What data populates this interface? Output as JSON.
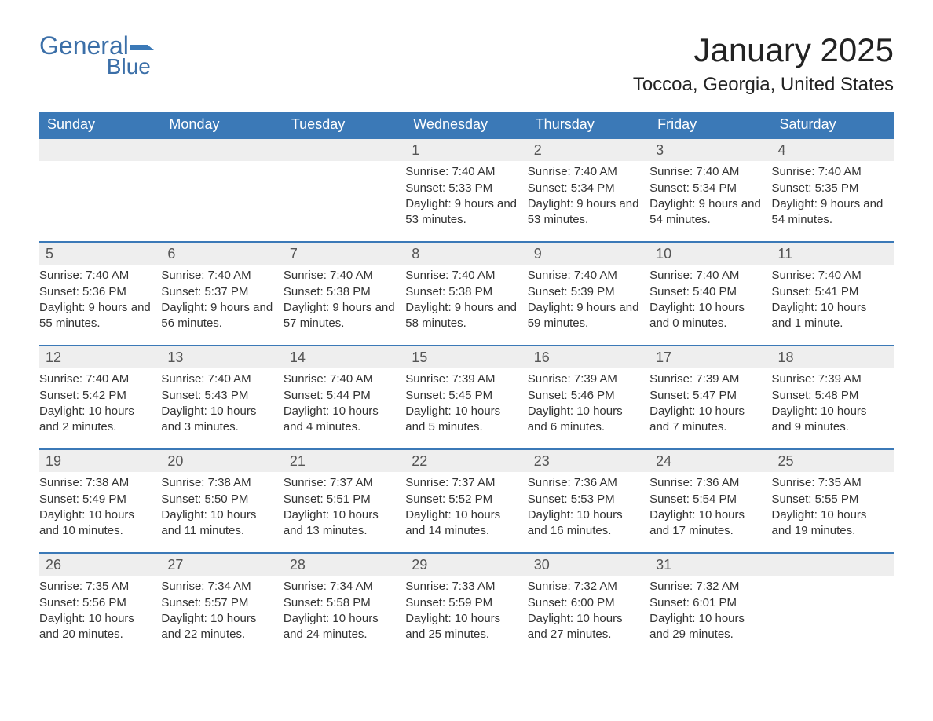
{
  "logo": {
    "text1": "General",
    "text2": "Blue",
    "flag_color": "#3b79b7"
  },
  "title": "January 2025",
  "location": "Toccoa, Georgia, United States",
  "colors": {
    "header_bg": "#3b79b7",
    "header_text": "#ffffff",
    "daynum_bg": "#eeeeee",
    "daynum_text": "#555555",
    "body_text": "#333333",
    "page_bg": "#ffffff",
    "row_border": "#3b79b7"
  },
  "fonts": {
    "title_pt": 42,
    "location_pt": 24,
    "dow_pt": 18,
    "daynum_pt": 18,
    "body_pt": 15
  },
  "days_of_week": [
    "Sunday",
    "Monday",
    "Tuesday",
    "Wednesday",
    "Thursday",
    "Friday",
    "Saturday"
  ],
  "weeks": [
    [
      {
        "n": "",
        "sr": "",
        "ss": "",
        "dl": ""
      },
      {
        "n": "",
        "sr": "",
        "ss": "",
        "dl": ""
      },
      {
        "n": "",
        "sr": "",
        "ss": "",
        "dl": ""
      },
      {
        "n": "1",
        "sr": "Sunrise: 7:40 AM",
        "ss": "Sunset: 5:33 PM",
        "dl": "Daylight: 9 hours and 53 minutes."
      },
      {
        "n": "2",
        "sr": "Sunrise: 7:40 AM",
        "ss": "Sunset: 5:34 PM",
        "dl": "Daylight: 9 hours and 53 minutes."
      },
      {
        "n": "3",
        "sr": "Sunrise: 7:40 AM",
        "ss": "Sunset: 5:34 PM",
        "dl": "Daylight: 9 hours and 54 minutes."
      },
      {
        "n": "4",
        "sr": "Sunrise: 7:40 AM",
        "ss": "Sunset: 5:35 PM",
        "dl": "Daylight: 9 hours and 54 minutes."
      }
    ],
    [
      {
        "n": "5",
        "sr": "Sunrise: 7:40 AM",
        "ss": "Sunset: 5:36 PM",
        "dl": "Daylight: 9 hours and 55 minutes."
      },
      {
        "n": "6",
        "sr": "Sunrise: 7:40 AM",
        "ss": "Sunset: 5:37 PM",
        "dl": "Daylight: 9 hours and 56 minutes."
      },
      {
        "n": "7",
        "sr": "Sunrise: 7:40 AM",
        "ss": "Sunset: 5:38 PM",
        "dl": "Daylight: 9 hours and 57 minutes."
      },
      {
        "n": "8",
        "sr": "Sunrise: 7:40 AM",
        "ss": "Sunset: 5:38 PM",
        "dl": "Daylight: 9 hours and 58 minutes."
      },
      {
        "n": "9",
        "sr": "Sunrise: 7:40 AM",
        "ss": "Sunset: 5:39 PM",
        "dl": "Daylight: 9 hours and 59 minutes."
      },
      {
        "n": "10",
        "sr": "Sunrise: 7:40 AM",
        "ss": "Sunset: 5:40 PM",
        "dl": "Daylight: 10 hours and 0 minutes."
      },
      {
        "n": "11",
        "sr": "Sunrise: 7:40 AM",
        "ss": "Sunset: 5:41 PM",
        "dl": "Daylight: 10 hours and 1 minute."
      }
    ],
    [
      {
        "n": "12",
        "sr": "Sunrise: 7:40 AM",
        "ss": "Sunset: 5:42 PM",
        "dl": "Daylight: 10 hours and 2 minutes."
      },
      {
        "n": "13",
        "sr": "Sunrise: 7:40 AM",
        "ss": "Sunset: 5:43 PM",
        "dl": "Daylight: 10 hours and 3 minutes."
      },
      {
        "n": "14",
        "sr": "Sunrise: 7:40 AM",
        "ss": "Sunset: 5:44 PM",
        "dl": "Daylight: 10 hours and 4 minutes."
      },
      {
        "n": "15",
        "sr": "Sunrise: 7:39 AM",
        "ss": "Sunset: 5:45 PM",
        "dl": "Daylight: 10 hours and 5 minutes."
      },
      {
        "n": "16",
        "sr": "Sunrise: 7:39 AM",
        "ss": "Sunset: 5:46 PM",
        "dl": "Daylight: 10 hours and 6 minutes."
      },
      {
        "n": "17",
        "sr": "Sunrise: 7:39 AM",
        "ss": "Sunset: 5:47 PM",
        "dl": "Daylight: 10 hours and 7 minutes."
      },
      {
        "n": "18",
        "sr": "Sunrise: 7:39 AM",
        "ss": "Sunset: 5:48 PM",
        "dl": "Daylight: 10 hours and 9 minutes."
      }
    ],
    [
      {
        "n": "19",
        "sr": "Sunrise: 7:38 AM",
        "ss": "Sunset: 5:49 PM",
        "dl": "Daylight: 10 hours and 10 minutes."
      },
      {
        "n": "20",
        "sr": "Sunrise: 7:38 AM",
        "ss": "Sunset: 5:50 PM",
        "dl": "Daylight: 10 hours and 11 minutes."
      },
      {
        "n": "21",
        "sr": "Sunrise: 7:37 AM",
        "ss": "Sunset: 5:51 PM",
        "dl": "Daylight: 10 hours and 13 minutes."
      },
      {
        "n": "22",
        "sr": "Sunrise: 7:37 AM",
        "ss": "Sunset: 5:52 PM",
        "dl": "Daylight: 10 hours and 14 minutes."
      },
      {
        "n": "23",
        "sr": "Sunrise: 7:36 AM",
        "ss": "Sunset: 5:53 PM",
        "dl": "Daylight: 10 hours and 16 minutes."
      },
      {
        "n": "24",
        "sr": "Sunrise: 7:36 AM",
        "ss": "Sunset: 5:54 PM",
        "dl": "Daylight: 10 hours and 17 minutes."
      },
      {
        "n": "25",
        "sr": "Sunrise: 7:35 AM",
        "ss": "Sunset: 5:55 PM",
        "dl": "Daylight: 10 hours and 19 minutes."
      }
    ],
    [
      {
        "n": "26",
        "sr": "Sunrise: 7:35 AM",
        "ss": "Sunset: 5:56 PM",
        "dl": "Daylight: 10 hours and 20 minutes."
      },
      {
        "n": "27",
        "sr": "Sunrise: 7:34 AM",
        "ss": "Sunset: 5:57 PM",
        "dl": "Daylight: 10 hours and 22 minutes."
      },
      {
        "n": "28",
        "sr": "Sunrise: 7:34 AM",
        "ss": "Sunset: 5:58 PM",
        "dl": "Daylight: 10 hours and 24 minutes."
      },
      {
        "n": "29",
        "sr": "Sunrise: 7:33 AM",
        "ss": "Sunset: 5:59 PM",
        "dl": "Daylight: 10 hours and 25 minutes."
      },
      {
        "n": "30",
        "sr": "Sunrise: 7:32 AM",
        "ss": "Sunset: 6:00 PM",
        "dl": "Daylight: 10 hours and 27 minutes."
      },
      {
        "n": "31",
        "sr": "Sunrise: 7:32 AM",
        "ss": "Sunset: 6:01 PM",
        "dl": "Daylight: 10 hours and 29 minutes."
      },
      {
        "n": "",
        "sr": "",
        "ss": "",
        "dl": ""
      }
    ]
  ]
}
